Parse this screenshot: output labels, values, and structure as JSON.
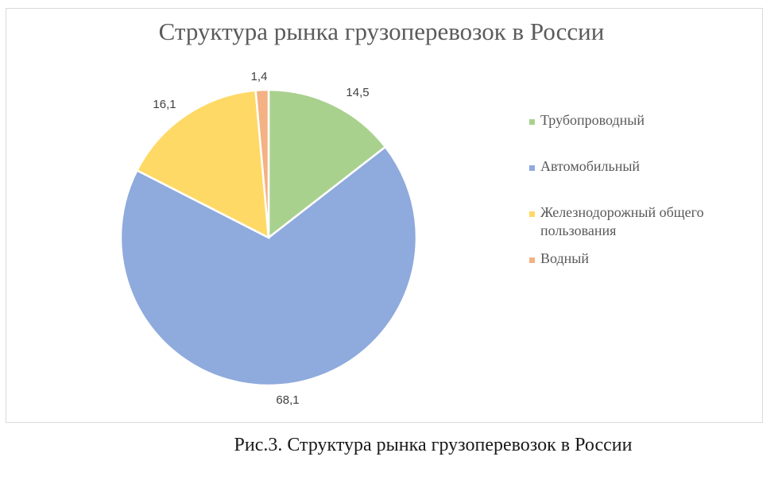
{
  "chart_data": {
    "type": "pie",
    "title": "Структура рынка грузоперевозок в России",
    "categories": [
      "Трубопроводный",
      "Автомобильный",
      "Железнодорожный общего пользования",
      "Водный"
    ],
    "values": [
      14.5,
      68.1,
      16.1,
      1.4
    ],
    "data_labels": [
      "14,5",
      "68,1",
      "16,1",
      "1,4"
    ],
    "colors": [
      "#a9d18e",
      "#8faadc",
      "#ffd966",
      "#f4b183"
    ],
    "legend_position": "right",
    "start_angle": "12 o'clock, clockwise"
  },
  "caption": "Рис.3. Структура рынка грузоперевозок в России"
}
